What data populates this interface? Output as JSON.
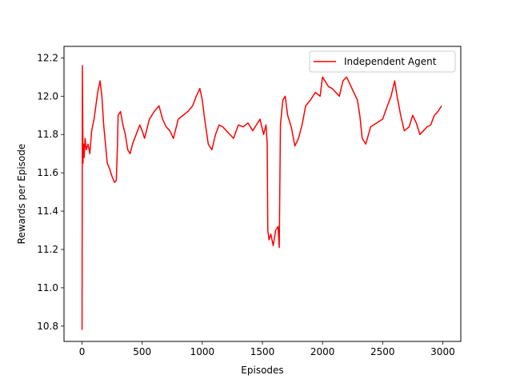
{
  "chart_data": {
    "type": "line",
    "title": "",
    "xlabel": "Episodes",
    "ylabel": "Rewards per Episode",
    "xlim": [
      -150,
      3150
    ],
    "ylim": [
      10.72,
      12.26
    ],
    "xticks": [
      0,
      500,
      1000,
      1500,
      2000,
      2500,
      3000
    ],
    "xtick_labels": [
      "0",
      "500",
      "1000",
      "1500",
      "2000",
      "2500",
      "3000"
    ],
    "yticks": [
      10.8,
      11.0,
      11.2,
      11.4,
      11.6,
      11.8,
      12.0,
      12.2
    ],
    "ytick_labels": [
      "10.8",
      "11.0",
      "11.2",
      "11.4",
      "11.6",
      "11.8",
      "12.0",
      "12.2"
    ],
    "grid": false,
    "legend_position": "upper-right",
    "series": [
      {
        "name": "Independent Agent",
        "color": "#ff0000",
        "x": [
          0,
          3,
          8,
          12,
          18,
          25,
          35,
          50,
          65,
          80,
          100,
          130,
          150,
          165,
          180,
          195,
          210,
          230,
          250,
          270,
          285,
          295,
          300,
          320,
          340,
          360,
          380,
          400,
          420,
          450,
          480,
          500,
          520,
          560,
          600,
          640,
          670,
          700,
          730,
          760,
          800,
          840,
          880,
          920,
          950,
          980,
          1000,
          1020,
          1050,
          1080,
          1110,
          1140,
          1170,
          1200,
          1230,
          1260,
          1300,
          1340,
          1380,
          1420,
          1450,
          1480,
          1510,
          1530,
          1540,
          1545,
          1555,
          1570,
          1590,
          1610,
          1630,
          1640,
          1650,
          1670,
          1690,
          1710,
          1740,
          1770,
          1800,
          1830,
          1860,
          1900,
          1940,
          1980,
          2000,
          2020,
          2050,
          2080,
          2110,
          2140,
          2170,
          2200,
          2230,
          2260,
          2290,
          2310,
          2330,
          2360,
          2400,
          2450,
          2500,
          2540,
          2570,
          2600,
          2620,
          2650,
          2680,
          2720,
          2750,
          2780,
          2810,
          2840,
          2870,
          2900,
          2930,
          2960,
          2990
        ],
        "y": [
          10.78,
          12.16,
          11.65,
          11.75,
          11.68,
          11.78,
          11.72,
          11.75,
          11.7,
          11.82,
          11.88,
          12.02,
          12.08,
          12.0,
          11.85,
          11.75,
          11.65,
          11.62,
          11.58,
          11.55,
          11.56,
          11.75,
          11.9,
          11.92,
          11.85,
          11.8,
          11.72,
          11.7,
          11.75,
          11.8,
          11.85,
          11.82,
          11.78,
          11.88,
          11.92,
          11.95,
          11.88,
          11.84,
          11.82,
          11.78,
          11.88,
          11.9,
          11.92,
          11.95,
          12.0,
          12.04,
          11.98,
          11.88,
          11.75,
          11.72,
          11.8,
          11.85,
          11.84,
          11.82,
          11.8,
          11.78,
          11.85,
          11.84,
          11.86,
          11.82,
          11.85,
          11.88,
          11.8,
          11.85,
          11.75,
          11.3,
          11.25,
          11.28,
          11.22,
          11.3,
          11.32,
          11.21,
          11.85,
          11.98,
          12.0,
          11.9,
          11.84,
          11.74,
          11.78,
          11.85,
          11.95,
          11.98,
          12.02,
          12.0,
          12.1,
          12.08,
          12.05,
          12.04,
          12.02,
          12.0,
          12.08,
          12.1,
          12.06,
          12.02,
          11.98,
          11.9,
          11.78,
          11.75,
          11.84,
          11.86,
          11.88,
          11.95,
          12.0,
          12.08,
          12.0,
          11.9,
          11.82,
          11.84,
          11.9,
          11.86,
          11.8,
          11.82,
          11.84,
          11.85,
          11.9,
          11.92,
          11.95
        ]
      }
    ]
  }
}
